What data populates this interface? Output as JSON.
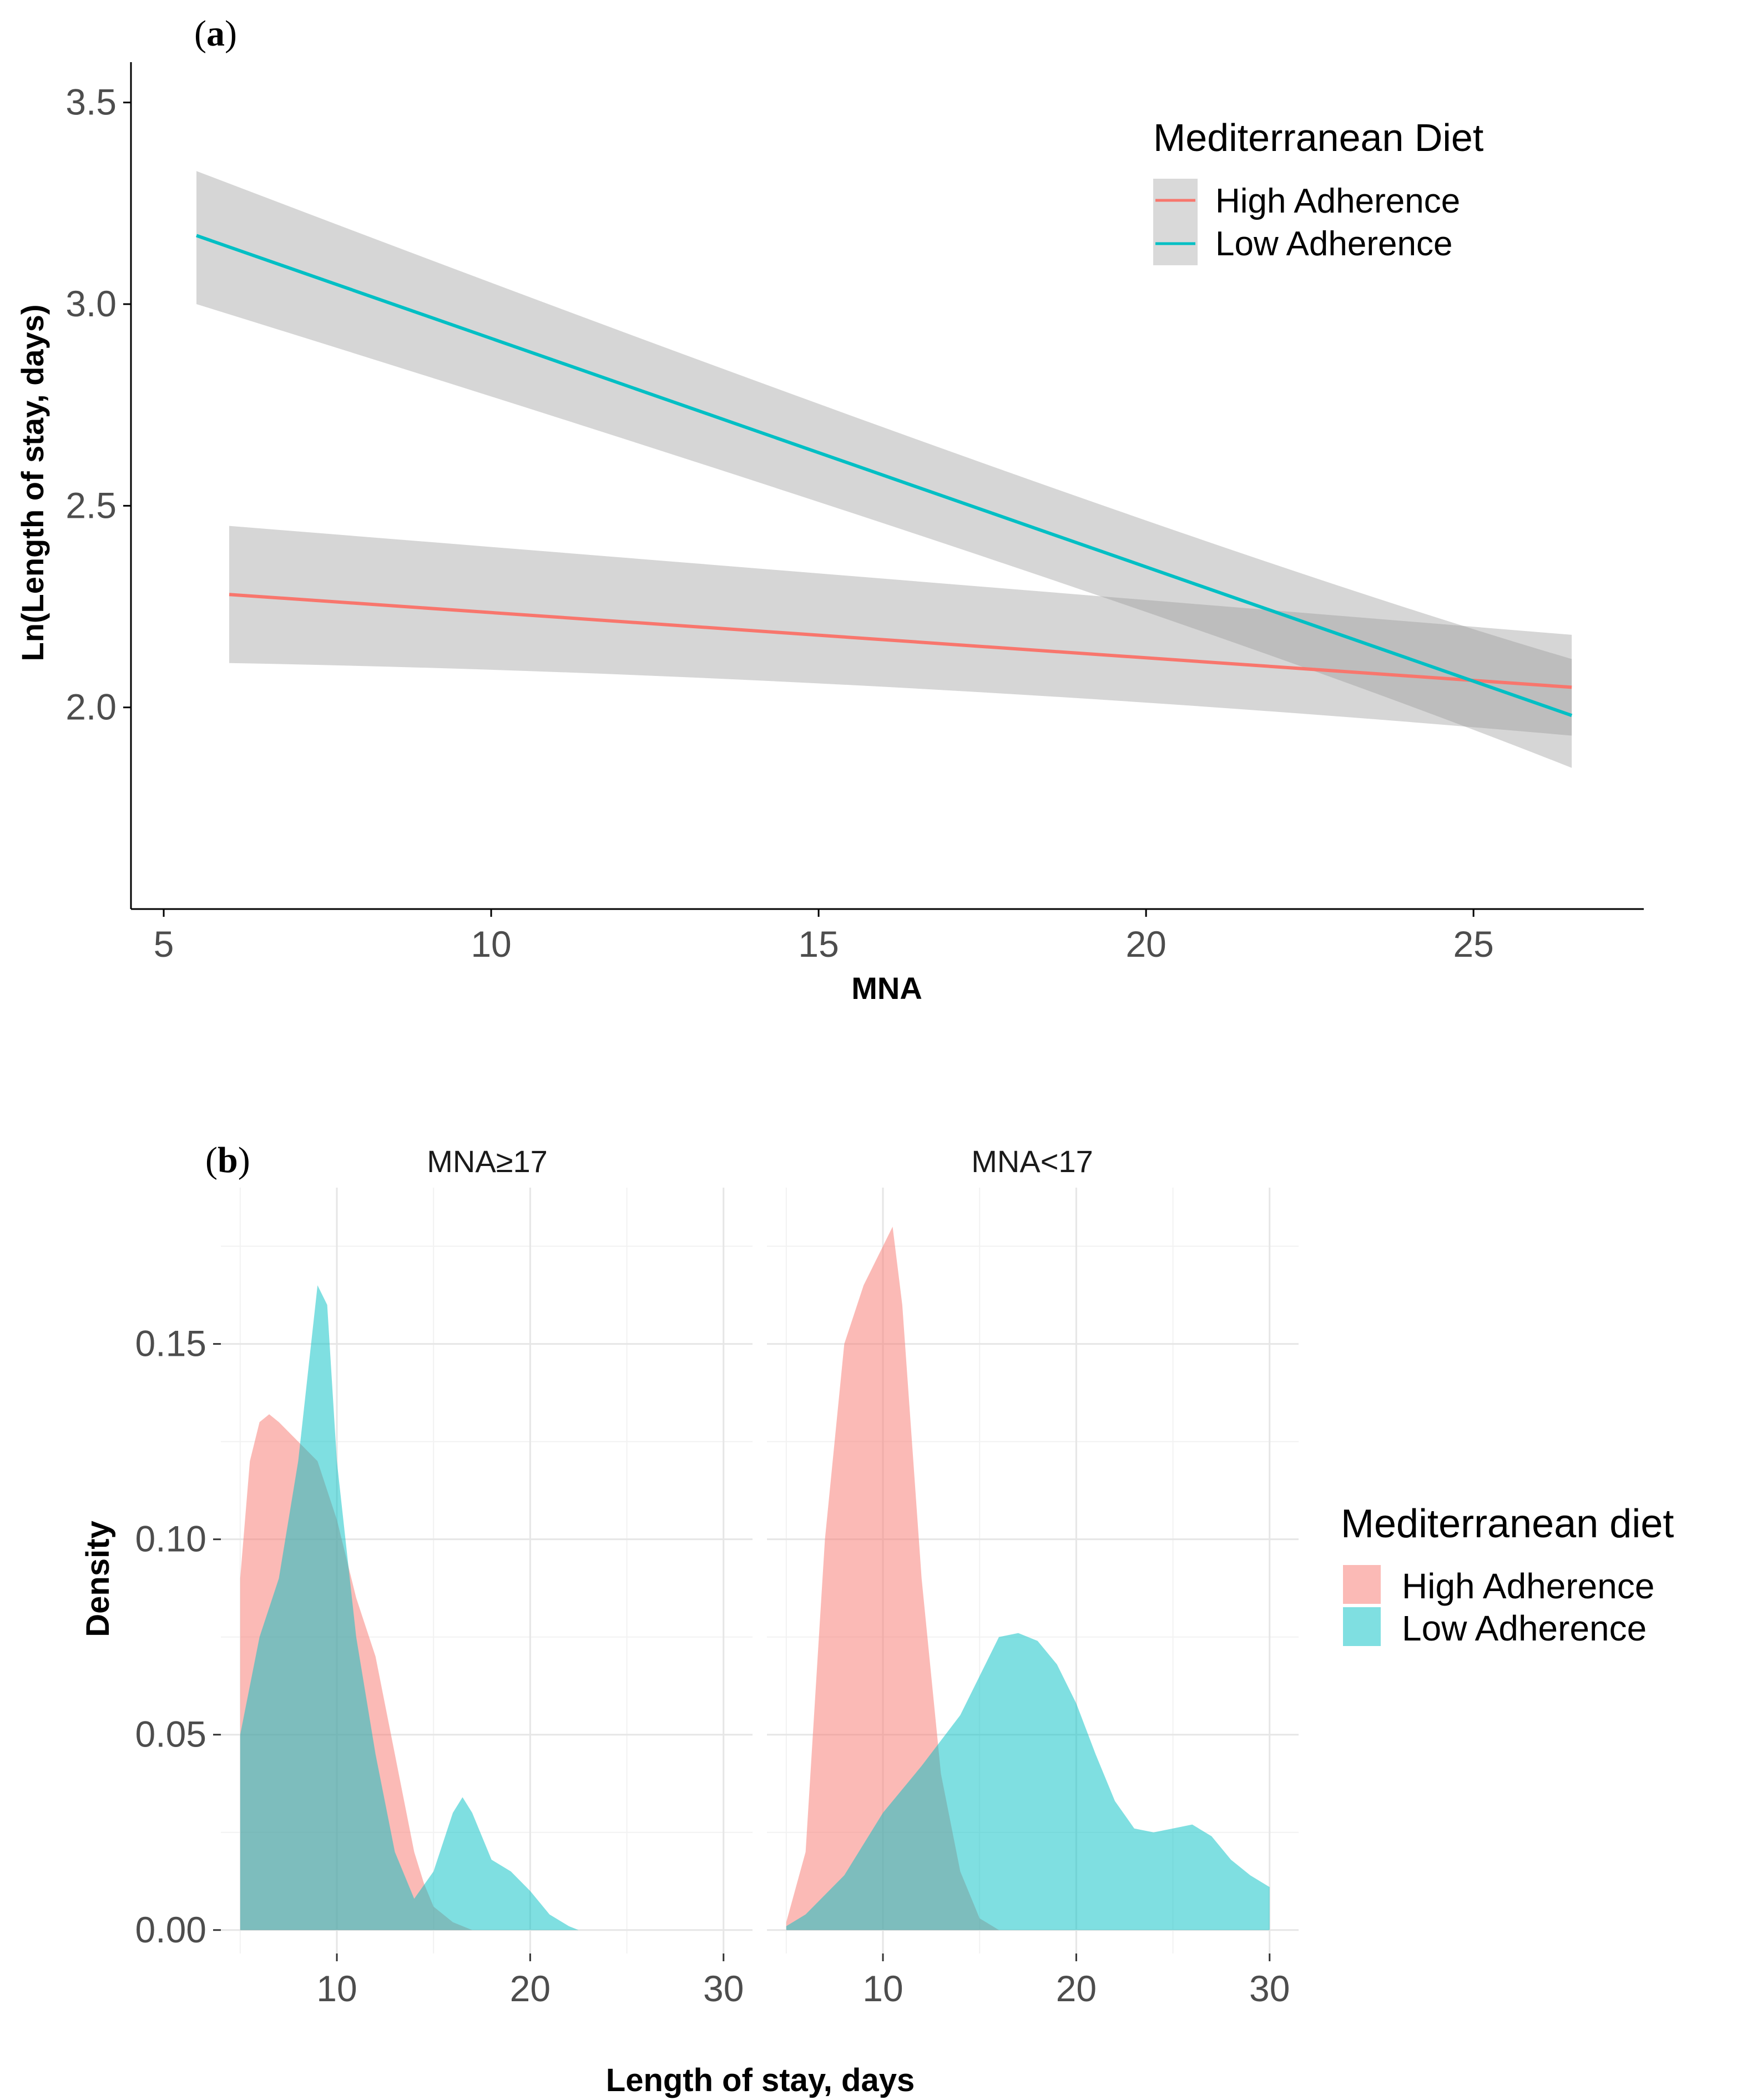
{
  "chart_data": [
    {
      "id": "a",
      "type": "line",
      "panel_label_open": "(",
      "panel_label_letter": "a",
      "panel_label_close": ")",
      "title": "",
      "xlabel": "MNA",
      "ylabel": "Ln(Length of stay, days)",
      "xlim": [
        4.5,
        27.6
      ],
      "ylim": [
        1.5,
        3.6
      ],
      "xticks": [
        5,
        10,
        15,
        20,
        25
      ],
      "yticks": [
        2.0,
        2.5,
        3.0,
        3.5
      ],
      "xtick_labels": [
        "5",
        "10",
        "15",
        "20",
        "25"
      ],
      "ytick_labels": [
        "2.0",
        "2.5",
        "3.0",
        "3.5"
      ],
      "legend_title": "Mediterranean Diet",
      "legend_position": "top-right",
      "series": [
        {
          "name": "High Adherence",
          "color": "#F8766D",
          "x": [
            6,
            26.5
          ],
          "y": [
            2.28,
            2.05
          ],
          "ci_lower": [
            2.11,
            1.93
          ],
          "ci_upper": [
            2.45,
            2.18
          ],
          "ci_mid_x": 16,
          "ci_mid_lower": [
            2.08
          ],
          "ci_mid_upper": [
            2.32
          ]
        },
        {
          "name": "Low Adherence",
          "color": "#00BFC4",
          "x": [
            5.5,
            26.5
          ],
          "y": [
            3.17,
            1.98
          ],
          "ci_lower": [
            3.0,
            1.85
          ],
          "ci_upper": [
            3.33,
            2.12
          ],
          "ci_mid_x": 20,
          "ci_mid_lower": [
            2.27
          ],
          "ci_mid_upper": [
            2.43
          ]
        }
      ],
      "ci_color": "#999999"
    },
    {
      "id": "b",
      "type": "area",
      "panel_label_open": "(",
      "panel_label_letter": "b",
      "panel_label_close": ")",
      "xlabel": "Length of stay, days",
      "ylabel": "Density",
      "xlim": [
        4,
        31.5
      ],
      "ylim": [
        -0.006,
        0.19
      ],
      "xticks": [
        10,
        20,
        30
      ],
      "yticks": [
        0.0,
        0.05,
        0.1,
        0.15
      ],
      "xtick_labels": [
        "10",
        "20",
        "30"
      ],
      "ytick_labels": [
        "0.00",
        "0.05",
        "0.10",
        "0.15"
      ],
      "legend_title": "Mediterranean diet",
      "legend_position": "right",
      "series_names": [
        "High Adherence",
        "Low Adherence"
      ],
      "series_colors": [
        "#F8766D",
        "#00BFC4"
      ],
      "facets": [
        {
          "label": "MNA≥17",
          "series": [
            {
              "name": "High Adherence",
              "x": [
                5,
                5.5,
                6,
                6.5,
                7,
                8,
                9,
                10,
                11,
                12,
                13,
                14,
                14.5,
                15,
                16,
                17
              ],
              "y": [
                0.09,
                0.12,
                0.13,
                0.132,
                0.13,
                0.125,
                0.12,
                0.105,
                0.085,
                0.07,
                0.045,
                0.02,
                0.012,
                0.006,
                0.002,
                0.0
              ]
            },
            {
              "name": "Low Adherence",
              "x": [
                5,
                6,
                7,
                8,
                9,
                9.5,
                10,
                11,
                12,
                13,
                14,
                15,
                16,
                16.5,
                17,
                18,
                19,
                20,
                21,
                22,
                22.5
              ],
              "y": [
                0.05,
                0.075,
                0.09,
                0.12,
                0.165,
                0.16,
                0.12,
                0.075,
                0.045,
                0.02,
                0.008,
                0.015,
                0.03,
                0.034,
                0.03,
                0.018,
                0.015,
                0.01,
                0.004,
                0.001,
                0.0
              ]
            }
          ]
        },
        {
          "label": "MNA<17",
          "series": [
            {
              "name": "High Adherence",
              "x": [
                5,
                6,
                7,
                8,
                9,
                10,
                10.5,
                11,
                12,
                13,
                14,
                15,
                16
              ],
              "y": [
                0.002,
                0.02,
                0.1,
                0.15,
                0.165,
                0.175,
                0.18,
                0.16,
                0.09,
                0.04,
                0.015,
                0.003,
                0.0
              ],
              "extent": [
                5,
                16
              ]
            },
            {
              "name": "Low Adherence",
              "x": [
                5,
                6,
                8,
                10,
                12,
                14,
                15,
                16,
                17,
                18,
                19,
                20,
                21,
                22,
                23,
                24,
                25,
                26,
                27,
                28,
                29,
                30
              ],
              "y": [
                0.001,
                0.004,
                0.014,
                0.03,
                0.042,
                0.055,
                0.065,
                0.075,
                0.076,
                0.074,
                0.068,
                0.058,
                0.045,
                0.033,
                0.026,
                0.025,
                0.026,
                0.027,
                0.024,
                0.018,
                0.014,
                0.011
              ]
            }
          ]
        }
      ]
    }
  ]
}
